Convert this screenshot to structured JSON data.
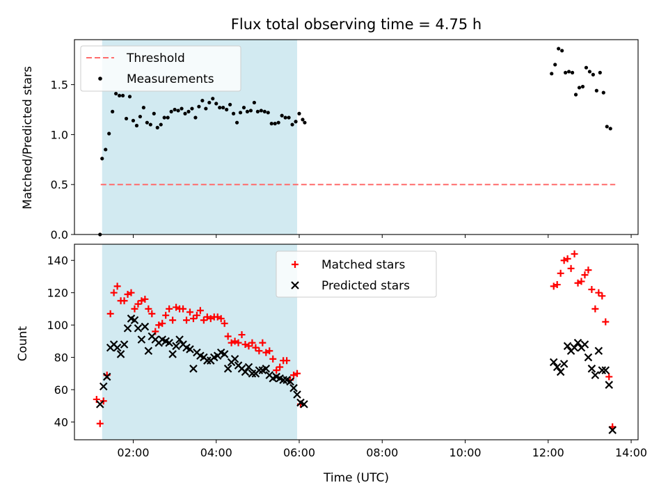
{
  "figure": {
    "title": "Flux total observing time = 4.75 h",
    "xlabel": "Time (UTC)"
  },
  "chart_data": [
    {
      "type": "scatter",
      "ylabel": "Matched/Predicted stars",
      "xlim": [
        "00:35",
        "14:10"
      ],
      "ylim": [
        0,
        1.95
      ],
      "yticks": [
        0.0,
        0.5,
        1.0,
        1.5
      ],
      "ytick_labels": [
        "0.0",
        "0.5",
        "1.0",
        "1.5"
      ],
      "shaded_span": {
        "start": "01:15",
        "end": "05:57",
        "color": "#add8e6"
      },
      "legend_location": "upper left",
      "legend": [
        {
          "key": "threshold",
          "label": "Threshold"
        },
        {
          "key": "measurements",
          "label": "Measurements"
        }
      ],
      "threshold": {
        "value": 0.5,
        "x_start": "01:13",
        "x_end": "13:37",
        "color": "#ff6b6b",
        "style": "dashed"
      },
      "measurements": {
        "color": "#000000",
        "points": [
          [
            "01:12",
            0.0
          ],
          [
            "01:15",
            0.76
          ],
          [
            "01:20",
            0.85
          ],
          [
            "01:25",
            1.01
          ],
          [
            "01:30",
            1.23
          ],
          [
            "01:35",
            1.41
          ],
          [
            "01:40",
            1.39
          ],
          [
            "01:45",
            1.39
          ],
          [
            "01:50",
            1.16
          ],
          [
            "01:55",
            1.38
          ],
          [
            "02:00",
            1.14
          ],
          [
            "02:05",
            1.09
          ],
          [
            "02:10",
            1.18
          ],
          [
            "02:15",
            1.27
          ],
          [
            "02:20",
            1.12
          ],
          [
            "02:25",
            1.1
          ],
          [
            "02:30",
            1.21
          ],
          [
            "02:35",
            1.07
          ],
          [
            "02:40",
            1.1
          ],
          [
            "02:45",
            1.17
          ],
          [
            "02:50",
            1.17
          ],
          [
            "02:55",
            1.23
          ],
          [
            "03:00",
            1.25
          ],
          [
            "03:05",
            1.24
          ],
          [
            "03:10",
            1.26
          ],
          [
            "03:15",
            1.21
          ],
          [
            "03:20",
            1.23
          ],
          [
            "03:25",
            1.26
          ],
          [
            "03:30",
            1.17
          ],
          [
            "03:35",
            1.28
          ],
          [
            "03:40",
            1.34
          ],
          [
            "03:45",
            1.26
          ],
          [
            "03:50",
            1.32
          ],
          [
            "03:55",
            1.36
          ],
          [
            "04:00",
            1.31
          ],
          [
            "04:05",
            1.27
          ],
          [
            "04:10",
            1.27
          ],
          [
            "04:15",
            1.25
          ],
          [
            "04:20",
            1.3
          ],
          [
            "04:25",
            1.21
          ],
          [
            "04:30",
            1.12
          ],
          [
            "04:35",
            1.22
          ],
          [
            "04:40",
            1.27
          ],
          [
            "04:45",
            1.23
          ],
          [
            "04:50",
            1.24
          ],
          [
            "04:55",
            1.32
          ],
          [
            "05:00",
            1.23
          ],
          [
            "05:05",
            1.24
          ],
          [
            "05:10",
            1.23
          ],
          [
            "05:15",
            1.22
          ],
          [
            "05:20",
            1.11
          ],
          [
            "05:25",
            1.11
          ],
          [
            "05:30",
            1.12
          ],
          [
            "05:35",
            1.19
          ],
          [
            "05:40",
            1.17
          ],
          [
            "05:45",
            1.17
          ],
          [
            "05:50",
            1.1
          ],
          [
            "05:55",
            1.13
          ],
          [
            "06:00",
            1.21
          ],
          [
            "06:05",
            1.15
          ],
          [
            "06:08",
            1.12
          ],
          [
            "12:05",
            1.61
          ],
          [
            "12:10",
            1.7
          ],
          [
            "12:15",
            1.86
          ],
          [
            "12:20",
            1.84
          ],
          [
            "12:25",
            1.62
          ],
          [
            "12:30",
            1.63
          ],
          [
            "12:35",
            1.62
          ],
          [
            "12:40",
            1.4
          ],
          [
            "12:45",
            1.47
          ],
          [
            "12:50",
            1.48
          ],
          [
            "12:55",
            1.67
          ],
          [
            "13:00",
            1.63
          ],
          [
            "13:05",
            1.6
          ],
          [
            "13:10",
            1.44
          ],
          [
            "13:15",
            1.62
          ],
          [
            "13:20",
            1.42
          ],
          [
            "13:25",
            1.08
          ],
          [
            "13:30",
            1.06
          ]
        ]
      }
    },
    {
      "type": "scatter",
      "ylabel": "Count",
      "xlim": [
        "00:35",
        "14:10"
      ],
      "ylim": [
        29,
        150
      ],
      "yticks": [
        40,
        60,
        80,
        100,
        120,
        140
      ],
      "xtick_labels": [
        "02:00",
        "04:00",
        "06:00",
        "08:00",
        "10:00",
        "12:00",
        "14:00"
      ],
      "shaded_span": {
        "start": "01:15",
        "end": "05:57",
        "color": "#add8e6"
      },
      "legend_location": "upper center",
      "legend": [
        {
          "key": "matched",
          "label": "Matched stars"
        },
        {
          "key": "predicted",
          "label": "Predicted stars"
        }
      ],
      "series": [
        {
          "key": "matched",
          "name": "Matched stars",
          "marker": "plus",
          "color": "#ff0000",
          "points": [
            [
              "01:07",
              54
            ],
            [
              "01:12",
              39
            ],
            [
              "01:17",
              53
            ],
            [
              "01:22",
              69
            ],
            [
              "01:27",
              107
            ],
            [
              "01:32",
              120
            ],
            [
              "01:37",
              124
            ],
            [
              "01:42",
              115
            ],
            [
              "01:47",
              115
            ],
            [
              "01:52",
              119
            ],
            [
              "01:57",
              120
            ],
            [
              "02:02",
              110
            ],
            [
              "02:07",
              113
            ],
            [
              "02:12",
              115
            ],
            [
              "02:17",
              116
            ],
            [
              "02:22",
              110
            ],
            [
              "02:27",
              107
            ],
            [
              "02:32",
              96
            ],
            [
              "02:37",
              100
            ],
            [
              "02:42",
              101
            ],
            [
              "02:47",
              106
            ],
            [
              "02:52",
              110
            ],
            [
              "02:57",
              103
            ],
            [
              "03:02",
              111
            ],
            [
              "03:07",
              110
            ],
            [
              "03:12",
              110
            ],
            [
              "03:17",
              103
            ],
            [
              "03:22",
              108
            ],
            [
              "03:27",
              104
            ],
            [
              "03:32",
              106
            ],
            [
              "03:37",
              109
            ],
            [
              "03:42",
              103
            ],
            [
              "03:47",
              105
            ],
            [
              "03:52",
              104
            ],
            [
              "03:57",
              105
            ],
            [
              "04:02",
              105
            ],
            [
              "04:07",
              104
            ],
            [
              "04:12",
              101
            ],
            [
              "04:17",
              93
            ],
            [
              "04:22",
              89
            ],
            [
              "04:27",
              90
            ],
            [
              "04:32",
              89
            ],
            [
              "04:37",
              94
            ],
            [
              "04:42",
              88
            ],
            [
              "04:47",
              87
            ],
            [
              "04:52",
              89
            ],
            [
              "04:57",
              86
            ],
            [
              "05:02",
              84
            ],
            [
              "05:07",
              89
            ],
            [
              "05:12",
              83
            ],
            [
              "05:17",
              84
            ],
            [
              "05:22",
              79
            ],
            [
              "05:27",
              72
            ],
            [
              "05:32",
              74
            ],
            [
              "05:37",
              78
            ],
            [
              "05:42",
              78
            ],
            [
              "05:47",
              66
            ],
            [
              "05:52",
              69
            ],
            [
              "05:57",
              70
            ],
            [
              "06:02",
              51
            ],
            [
              "12:08",
              124
            ],
            [
              "12:13",
              125
            ],
            [
              "12:18",
              132
            ],
            [
              "12:23",
              140
            ],
            [
              "12:28",
              141
            ],
            [
              "12:33",
              135
            ],
            [
              "12:38",
              144
            ],
            [
              "12:43",
              126
            ],
            [
              "12:48",
              127
            ],
            [
              "12:53",
              131
            ],
            [
              "12:58",
              134
            ],
            [
              "13:03",
              122
            ],
            [
              "13:08",
              110
            ],
            [
              "13:13",
              120
            ],
            [
              "13:18",
              118
            ],
            [
              "13:23",
              102
            ],
            [
              "13:28",
              68
            ],
            [
              "13:33",
              37
            ]
          ]
        },
        {
          "key": "predicted",
          "name": "Predicted stars",
          "marker": "x",
          "color": "#000000",
          "points": [
            [
              "01:12",
              51
            ],
            [
              "01:17",
              62
            ],
            [
              "01:22",
              68
            ],
            [
              "01:27",
              86
            ],
            [
              "01:32",
              88
            ],
            [
              "01:37",
              86
            ],
            [
              "01:42",
              82
            ],
            [
              "01:47",
              88
            ],
            [
              "01:52",
              98
            ],
            [
              "01:57",
              104
            ],
            [
              "02:02",
              103
            ],
            [
              "02:07",
              98
            ],
            [
              "02:12",
              91
            ],
            [
              "02:17",
              99
            ],
            [
              "02:22",
              84
            ],
            [
              "02:27",
              93
            ],
            [
              "02:32",
              91
            ],
            [
              "02:37",
              89
            ],
            [
              "02:42",
              91
            ],
            [
              "02:47",
              90
            ],
            [
              "02:52",
              89
            ],
            [
              "02:57",
              82
            ],
            [
              "03:02",
              87
            ],
            [
              "03:07",
              91
            ],
            [
              "03:12",
              88
            ],
            [
              "03:17",
              86
            ],
            [
              "03:22",
              85
            ],
            [
              "03:27",
              73
            ],
            [
              "03:32",
              83
            ],
            [
              "03:37",
              81
            ],
            [
              "03:42",
              80
            ],
            [
              "03:47",
              78
            ],
            [
              "03:52",
              78
            ],
            [
              "03:57",
              80
            ],
            [
              "04:02",
              81
            ],
            [
              "04:07",
              83
            ],
            [
              "04:12",
              82
            ],
            [
              "04:17",
              73
            ],
            [
              "04:22",
              77
            ],
            [
              "04:27",
              79
            ],
            [
              "04:32",
              75
            ],
            [
              "04:37",
              73
            ],
            [
              "04:42",
              71
            ],
            [
              "04:47",
              74
            ],
            [
              "04:52",
              70
            ],
            [
              "04:57",
              70
            ],
            [
              "05:02",
              72
            ],
            [
              "05:07",
              72
            ],
            [
              "05:12",
              73
            ],
            [
              "05:17",
              69
            ],
            [
              "05:22",
              67
            ],
            [
              "05:27",
              68
            ],
            [
              "05:32",
              67
            ],
            [
              "05:37",
              66
            ],
            [
              "05:42",
              66
            ],
            [
              "05:47",
              65
            ],
            [
              "05:52",
              61
            ],
            [
              "05:57",
              57
            ],
            [
              "06:02",
              52
            ],
            [
              "06:07",
              51
            ],
            [
              "12:08",
              77
            ],
            [
              "12:13",
              74
            ],
            [
              "12:18",
              71
            ],
            [
              "12:23",
              76
            ],
            [
              "12:28",
              87
            ],
            [
              "12:33",
              84
            ],
            [
              "12:38",
              86
            ],
            [
              "12:43",
              89
            ],
            [
              "12:48",
              86
            ],
            [
              "12:53",
              88
            ],
            [
              "12:58",
              80
            ],
            [
              "13:03",
              73
            ],
            [
              "13:08",
              69
            ],
            [
              "13:13",
              84
            ],
            [
              "13:18",
              72
            ],
            [
              "13:23",
              72
            ],
            [
              "13:28",
              63
            ],
            [
              "13:33",
              35
            ]
          ]
        }
      ]
    }
  ]
}
